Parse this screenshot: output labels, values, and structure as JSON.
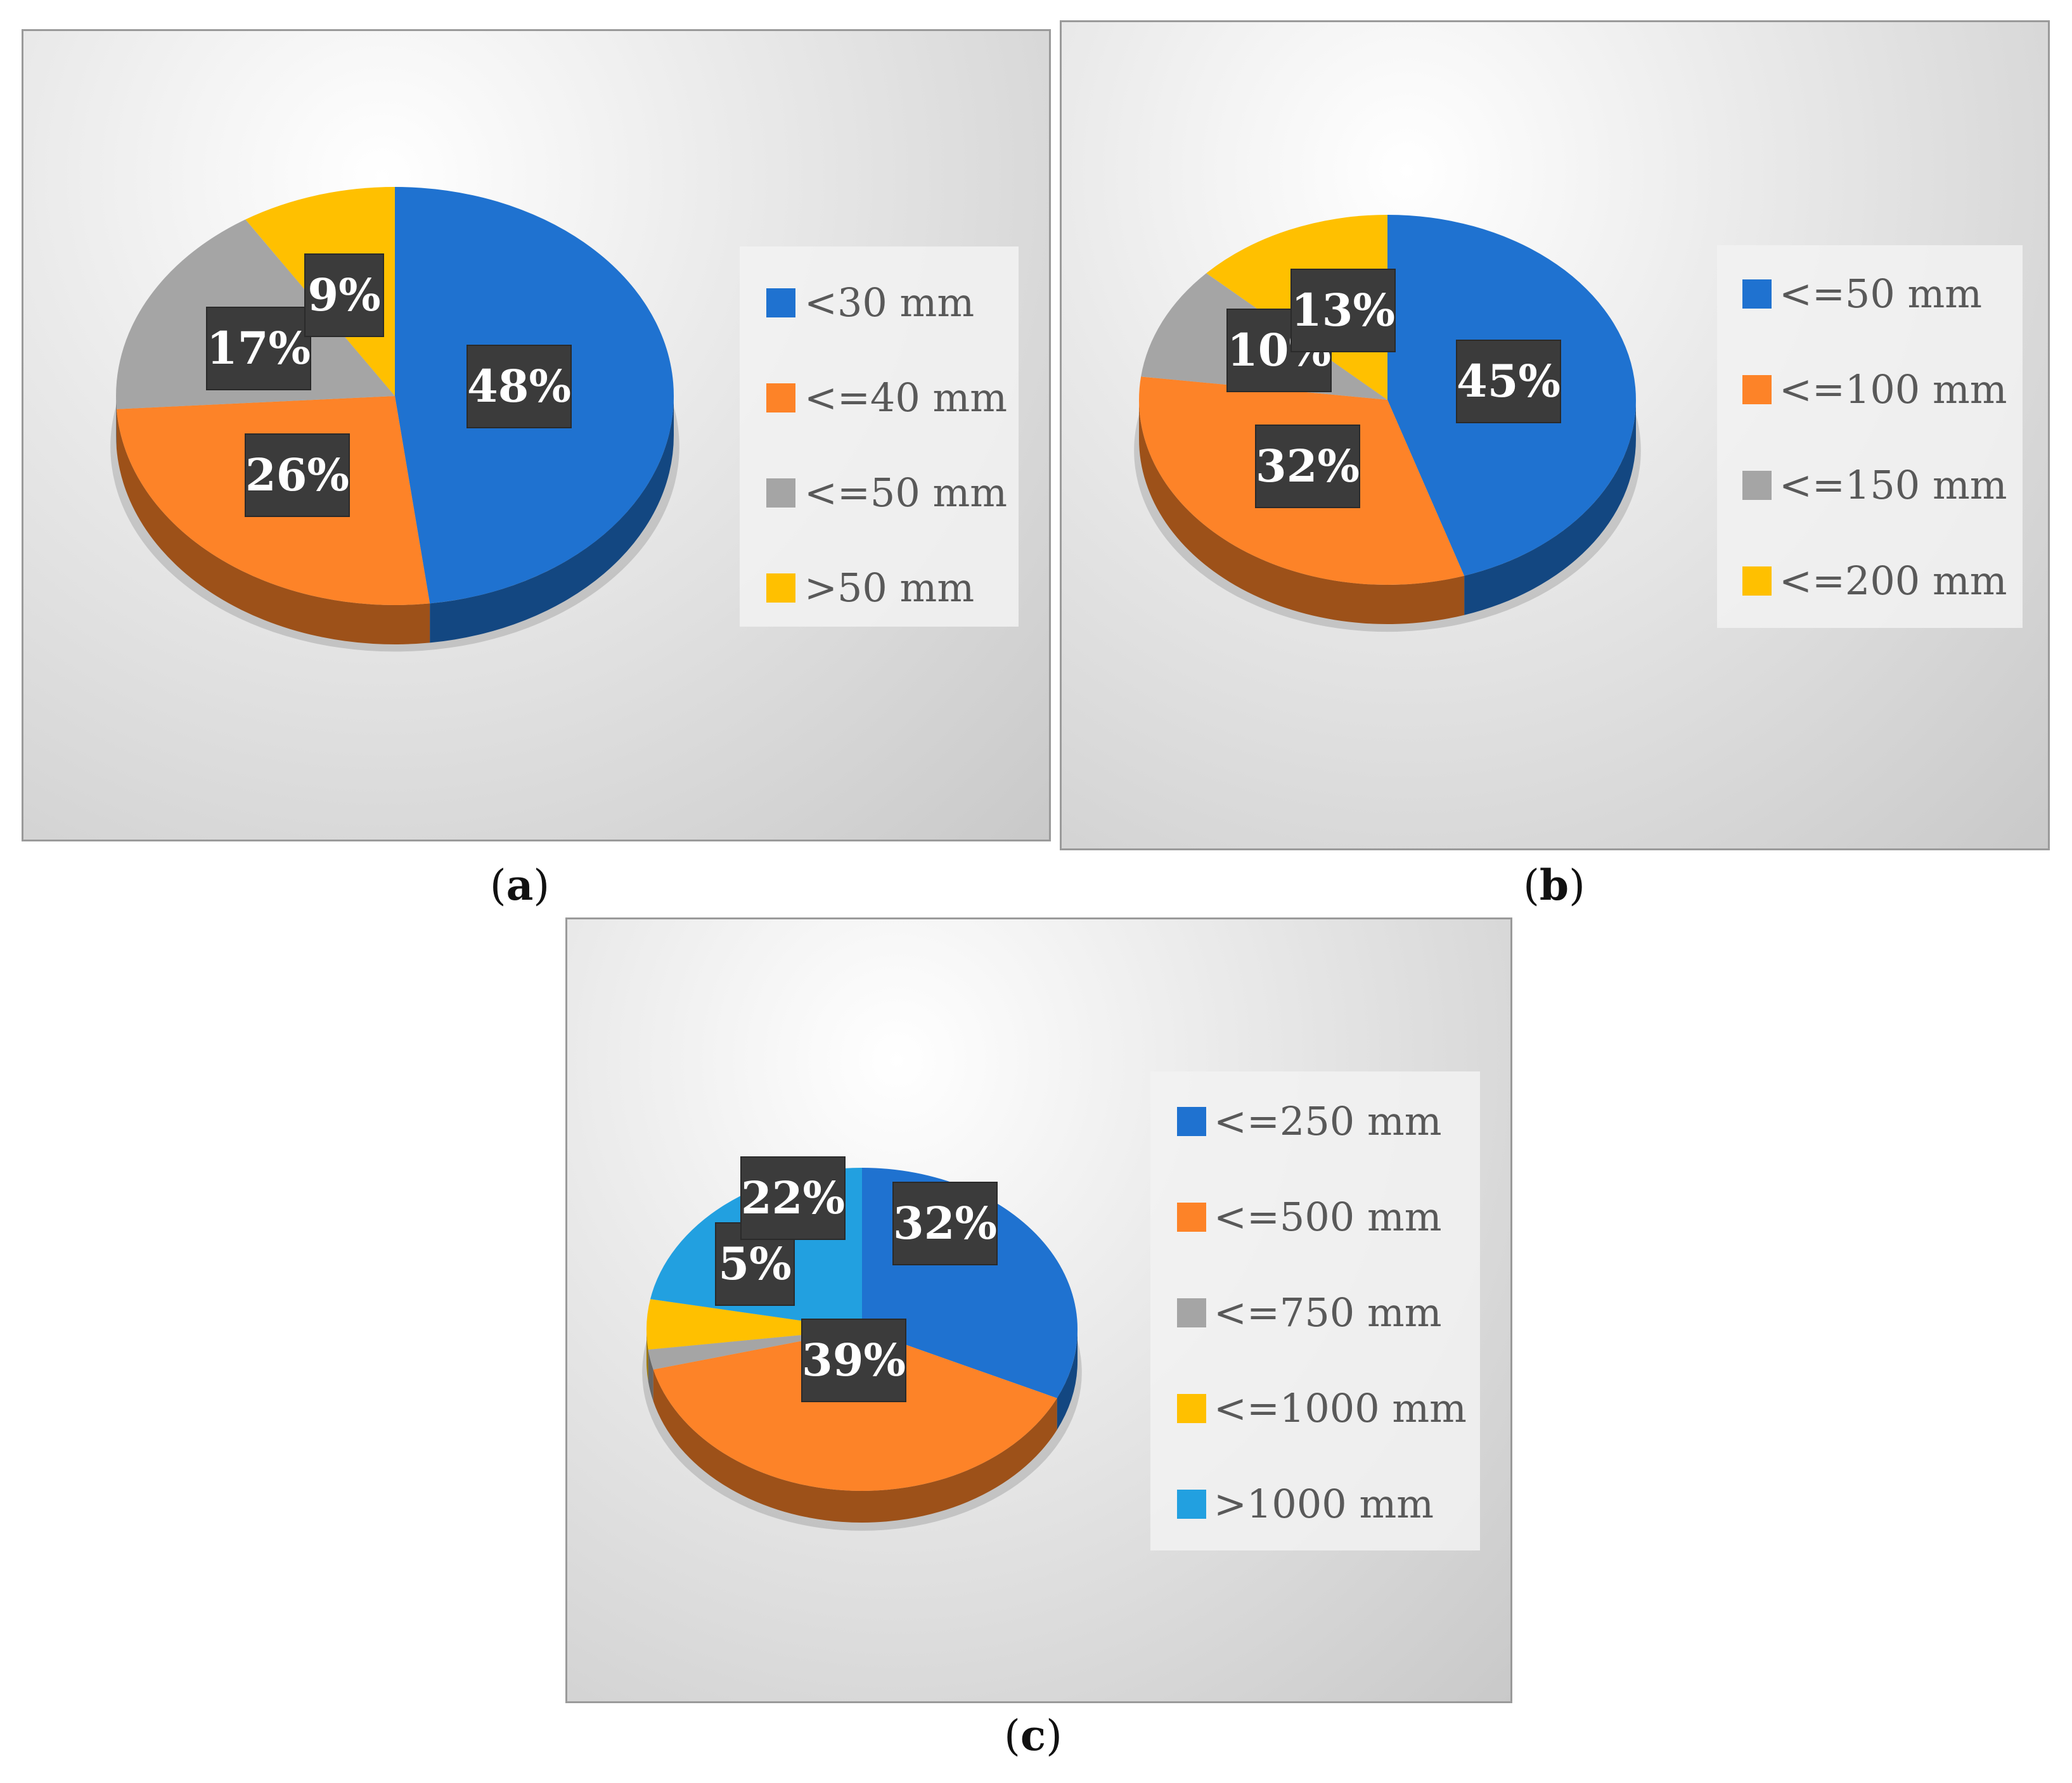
{
  "colors": {
    "blue": "#1f72d0",
    "orange": "#fd8328",
    "gray": "#a5a5a5",
    "yellow": "#ffc000",
    "light_blue": "#22a0e0"
  },
  "chart_data": [
    {
      "type": "pie",
      "panel": "a",
      "caption": "a",
      "title": "",
      "categories": [
        "<30 mm",
        "<=40 mm",
        "<=50 mm",
        ">50 mm"
      ],
      "values": [
        48,
        26,
        17,
        9
      ],
      "labels": [
        "48%",
        "26%",
        "17%",
        "9%"
      ],
      "colors": [
        "#1f72d0",
        "#fd8328",
        "#a5a5a5",
        "#ffc000"
      ],
      "legend": "right",
      "style": "3d"
    },
    {
      "type": "pie",
      "panel": "b",
      "caption": "b",
      "title": "",
      "categories": [
        "<=50 mm",
        "<=100 mm",
        "<=150 mm",
        "<=200 mm"
      ],
      "values": [
        45,
        32,
        10,
        13
      ],
      "labels": [
        "45%",
        "32%",
        "10%",
        "13%"
      ],
      "colors": [
        "#1f72d0",
        "#fd8328",
        "#a5a5a5",
        "#ffc000"
      ],
      "legend": "right",
      "style": "3d"
    },
    {
      "type": "pie",
      "panel": "c",
      "caption": "c",
      "title": "",
      "categories": [
        "<=250 mm",
        "<=500 mm",
        "<=750 mm",
        "<=1000 mm",
        ">1000 mm"
      ],
      "values": [
        32,
        39,
        2,
        5,
        22
      ],
      "labels": [
        "32%",
        "39%",
        "",
        "5%",
        "22%"
      ],
      "colors": [
        "#1f72d0",
        "#fd8328",
        "#a5a5a5",
        "#ffc000",
        "#22a0e0"
      ],
      "legend": "right",
      "style": "3d"
    }
  ]
}
